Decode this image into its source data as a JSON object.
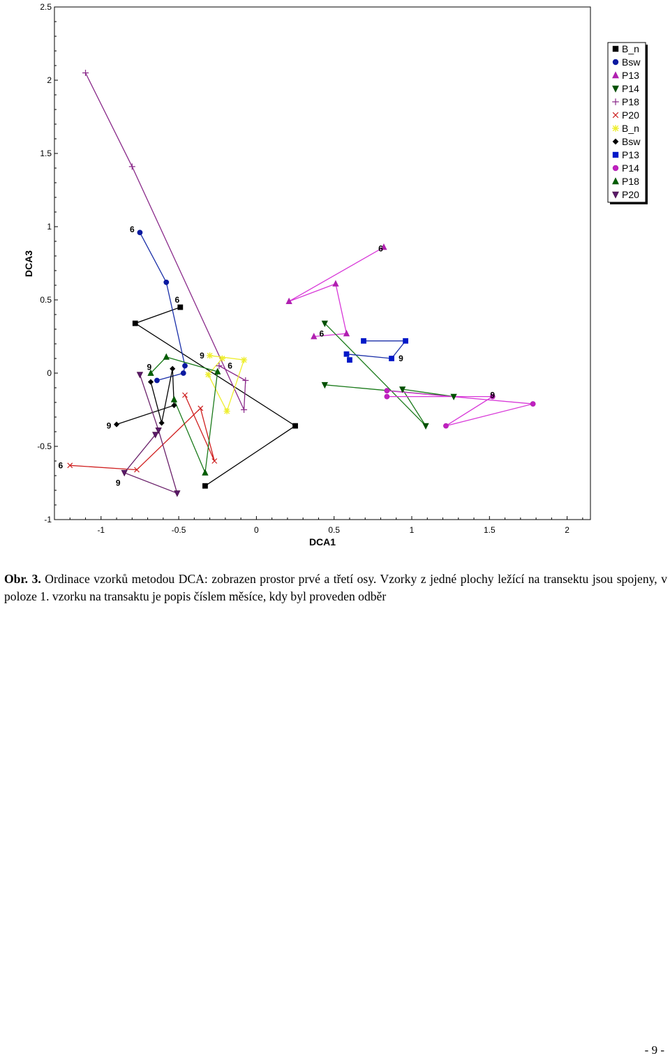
{
  "chart_data": {
    "type": "scatter",
    "title": "",
    "xlabel": "DCA1",
    "ylabel": "DCA3",
    "xlim": [
      -1.3,
      2.15
    ],
    "ylim": [
      -1,
      2.5
    ],
    "xticks": [
      "-1",
      "-0.5",
      "0",
      "0.5",
      "1",
      "1.5",
      "2"
    ],
    "xtick_values": [
      -1,
      -0.5,
      0,
      0.5,
      1,
      1.5,
      2
    ],
    "yticks": [
      "2.5",
      "2",
      "1.5",
      "1",
      "0.5",
      "0",
      "-0.5",
      "-1"
    ],
    "ytick_values": [
      2.5,
      2,
      1.5,
      1,
      0.5,
      0,
      -0.5,
      -1
    ],
    "legend_position": "top-right",
    "series": [
      {
        "name": "B_n",
        "marker": "square",
        "color": "#000000",
        "fill": "#000000",
        "line_color": "#000000",
        "points": [
          [
            -0.49,
            0.45
          ],
          [
            -0.78,
            0.34
          ],
          [
            0.25,
            -0.36
          ],
          [
            -0.33,
            -0.77
          ]
        ]
      },
      {
        "name": "Bsw",
        "marker": "circle",
        "color": "#0a1aa0",
        "fill": "#0a1aa0",
        "line_color": "#1a2fa8",
        "points": [
          [
            -0.75,
            0.96
          ],
          [
            -0.58,
            0.62
          ],
          [
            -0.46,
            0.05
          ],
          [
            -0.47,
            0.0
          ],
          [
            -0.64,
            -0.05
          ]
        ]
      },
      {
        "name": "P13",
        "marker": "triangle-up",
        "color": "#b020b0",
        "fill": "#b020b0",
        "line_color": "#d838d8",
        "points": [
          [
            0.82,
            0.86
          ],
          [
            0.21,
            0.49
          ],
          [
            0.51,
            0.61
          ],
          [
            0.58,
            0.27
          ],
          [
            0.37,
            0.25
          ]
        ]
      },
      {
        "name": "P14",
        "marker": "triangle-down",
        "color": "#005000",
        "fill": "#005000",
        "line_color": "#1a7a1a",
        "points": [
          [
            0.44,
            0.34
          ],
          [
            1.09,
            -0.36
          ],
          [
            0.94,
            -0.11
          ],
          [
            1.27,
            -0.16
          ],
          [
            0.44,
            -0.08
          ]
        ]
      },
      {
        "name": "P18",
        "marker": "plus",
        "color": "#8a2a8a",
        "fill": "none",
        "line_color": "#8a2a8a",
        "points": [
          [
            -1.1,
            2.05
          ],
          [
            -0.8,
            1.41
          ],
          [
            -0.08,
            -0.25
          ],
          [
            -0.07,
            -0.05
          ],
          [
            -0.24,
            0.05
          ]
        ]
      },
      {
        "name": "P20",
        "marker": "cross",
        "color": "#cc2020",
        "fill": "none",
        "line_color": "#d02020",
        "points": [
          [
            -1.2,
            -0.63
          ],
          [
            -0.77,
            -0.66
          ],
          [
            -0.36,
            -0.24
          ],
          [
            -0.27,
            -0.6
          ],
          [
            -0.46,
            -0.15
          ]
        ]
      },
      {
        "name": "B_n",
        "marker": "asterisk",
        "color": "#eeee30",
        "fill": "none",
        "line_color": "#eeee30",
        "points": [
          [
            -0.3,
            0.12
          ],
          [
            -0.08,
            0.09
          ],
          [
            -0.19,
            -0.26
          ],
          [
            -0.31,
            -0.01
          ],
          [
            -0.22,
            0.1
          ]
        ]
      },
      {
        "name": "Bsw",
        "marker": "diamond",
        "color": "#000000",
        "fill": "#000000",
        "line_color": "#000000",
        "points": [
          [
            -0.9,
            -0.35
          ],
          [
            -0.53,
            -0.22
          ],
          [
            -0.54,
            0.03
          ],
          [
            -0.61,
            -0.34
          ],
          [
            -0.68,
            -0.06
          ]
        ]
      },
      {
        "name": "P13",
        "marker": "square",
        "color": "#0018c8",
        "fill": "#0018c8",
        "line_color": "#1a2fa8",
        "points": [
          [
            0.69,
            0.22
          ],
          [
            0.96,
            0.22
          ],
          [
            0.87,
            0.1
          ],
          [
            0.58,
            0.13
          ],
          [
            0.6,
            0.09
          ]
        ]
      },
      {
        "name": "P14",
        "marker": "circle",
        "color": "#b020b0",
        "fill": "#c020c0",
        "line_color": "#d838d8",
        "points": [
          [
            0.84,
            -0.12
          ],
          [
            1.78,
            -0.21
          ],
          [
            1.22,
            -0.36
          ],
          [
            1.52,
            -0.16
          ],
          [
            0.84,
            -0.16
          ]
        ]
      },
      {
        "name": "P18",
        "marker": "triangle-up",
        "color": "#005000",
        "fill": "#006000",
        "line_color": "#1a7a1a",
        "points": [
          [
            -0.68,
            0.0
          ],
          [
            -0.58,
            0.11
          ],
          [
            -0.25,
            0.01
          ],
          [
            -0.33,
            -0.68
          ],
          [
            -0.53,
            -0.18
          ]
        ]
      },
      {
        "name": "P20",
        "marker": "triangle-down",
        "color": "#4a104a",
        "fill": "#5a1a6a",
        "line_color": "#6a206a",
        "points": [
          [
            -0.75,
            -0.01
          ],
          [
            -0.63,
            -0.39
          ],
          [
            -0.51,
            -0.82
          ],
          [
            -0.85,
            -0.68
          ],
          [
            -0.65,
            -0.42
          ]
        ]
      }
    ],
    "annotations": [
      {
        "text": "6",
        "x": -0.8,
        "y": 0.98
      },
      {
        "text": "6",
        "x": 0.8,
        "y": 0.85
      },
      {
        "text": "6",
        "x": -0.51,
        "y": 0.5
      },
      {
        "text": "6",
        "x": 0.42,
        "y": 0.27
      },
      {
        "text": "6",
        "x": -0.17,
        "y": 0.05
      },
      {
        "text": "6",
        "x": -1.26,
        "y": -0.63
      },
      {
        "text": "9",
        "x": -0.35,
        "y": 0.12
      },
      {
        "text": "9",
        "x": -0.69,
        "y": 0.04
      },
      {
        "text": "9",
        "x": 0.93,
        "y": 0.1
      },
      {
        "text": "9",
        "x": 1.52,
        "y": -0.15
      },
      {
        "text": "9",
        "x": -0.95,
        "y": -0.36
      },
      {
        "text": "9",
        "x": -0.89,
        "y": -0.75
      }
    ]
  },
  "caption": {
    "label": "Obr. 3.",
    "text": " Ordinace vzorků metodou DCA: zobrazen prostor prvé a třetí osy. Vzorky z jedné plochy ležící na transektu jsou spojeny, v poloze 1. vzorku na transaktu je popis číslem měsíce, kdy byl proveden odběr"
  },
  "page_number": "- 9 -"
}
